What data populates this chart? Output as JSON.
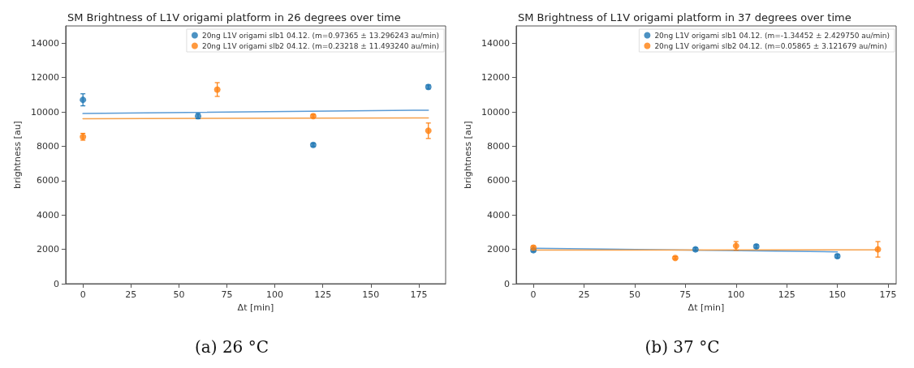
{
  "chart_data": [
    {
      "type": "scatter",
      "title": "SM Brightness of L1V origami platform in 26 degrees over time",
      "xlabel": "Δt [min]",
      "ylabel": "brightness [au]",
      "xlim": [
        -9,
        189
      ],
      "xticks": [
        0,
        25,
        50,
        75,
        100,
        125,
        150,
        175
      ],
      "ylim": [
        0,
        15000
      ],
      "yticks": [
        0,
        2000,
        4000,
        6000,
        8000,
        10000,
        12000,
        14000
      ],
      "grid": false,
      "legend": "top right",
      "annotations": [
        "(a) 26 °C"
      ],
      "series": [
        {
          "name": "20ng L1V origami slb1 04.12. (m=0.97365 ± 13.296243 au/min)",
          "color": "#1f77b4",
          "marker": "circle",
          "x": [
            0,
            60,
            120,
            180
          ],
          "values": [
            10700,
            9750,
            8080,
            11450
          ],
          "errors": [
            350,
            150,
            100,
            120
          ]
        },
        {
          "name": "20ng L1V origami slb2 04.12. (m=0.23218 ± 11.493240 au/min)",
          "color": "#ff7f0e",
          "marker": "circle",
          "x": [
            0,
            70,
            120,
            180
          ],
          "values": [
            8550,
            11300,
            9750,
            8900
          ],
          "errors": [
            200,
            400,
            100,
            450
          ]
        },
        {
          "type": "line",
          "color": "#5b9bd5",
          "marker": "none",
          "x": [
            0,
            180
          ],
          "values": [
            9900,
            10100
          ]
        },
        {
          "type": "line",
          "color": "#f5a04a",
          "marker": "none",
          "x": [
            0,
            180
          ],
          "values": [
            9600,
            9650
          ]
        }
      ]
    },
    {
      "type": "scatter",
      "title": "SM Brightness of L1V origami platform in 37 degrees over time",
      "xlabel": "Δt [min]",
      "ylabel": "brightness [au]",
      "xlim": [
        -8.5,
        179
      ],
      "xticks": [
        0,
        25,
        50,
        75,
        100,
        125,
        150,
        175
      ],
      "ylim": [
        0,
        15000
      ],
      "yticks": [
        0,
        2000,
        4000,
        6000,
        8000,
        10000,
        12000,
        14000
      ],
      "grid": false,
      "legend": "top right",
      "annotations": [
        "(b) 37 °C"
      ],
      "series": [
        {
          "name": "20ng L1V origami slb1 04.12. (m=-1.34452 ± 2.429750 au/min)",
          "color": "#1f77b4",
          "marker": "circle",
          "x": [
            0,
            80,
            110,
            150
          ],
          "values": [
            1950,
            2000,
            2170,
            1600
          ],
          "errors": [
            100,
            100,
            100,
            100
          ]
        },
        {
          "name": "20ng L1V origami slb2 04.12. (m=0.05865 ± 3.121679 au/min)",
          "color": "#ff7f0e",
          "marker": "circle",
          "x": [
            0,
            70,
            100,
            170
          ],
          "values": [
            2100,
            1500,
            2200,
            2000
          ],
          "errors": [
            100,
            80,
            250,
            450
          ]
        },
        {
          "type": "line",
          "color": "#5b9bd5",
          "marker": "none",
          "x": [
            0,
            150
          ],
          "values": [
            2060,
            1850
          ]
        },
        {
          "type": "line",
          "color": "#f5a04a",
          "marker": "none",
          "x": [
            0,
            170
          ],
          "values": [
            1960,
            1970
          ]
        }
      ]
    }
  ]
}
